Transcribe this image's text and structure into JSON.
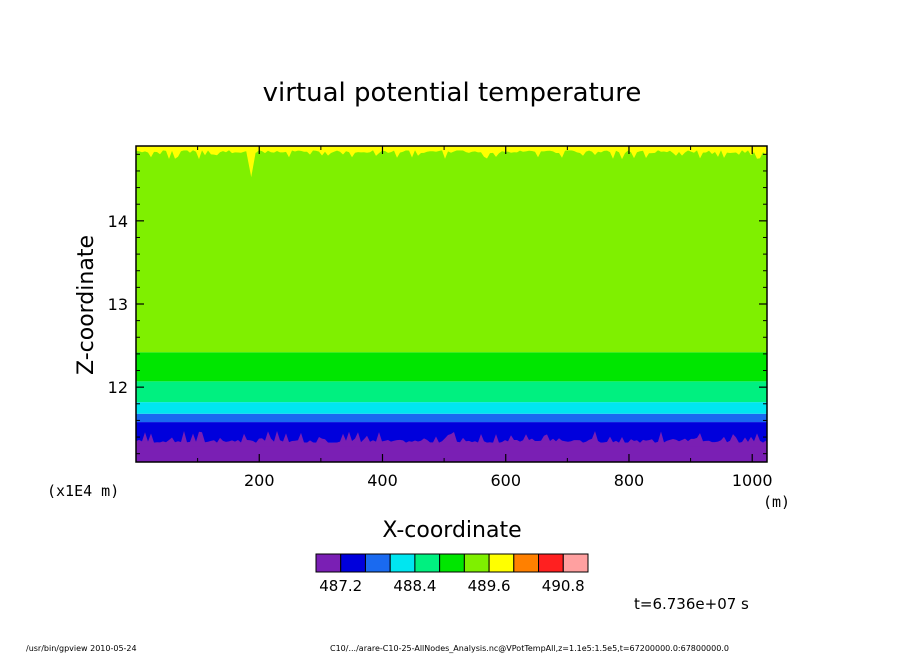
{
  "chart_data": {
    "type": "heatmap",
    "title": "virtual potential temperature",
    "xlabel": "X-coordinate",
    "ylabel": "Z-coordinate",
    "xunit": "(m)",
    "yunit": "(x1E4 m)",
    "xlim": [
      0,
      1024
    ],
    "ylim": [
      11.1,
      14.9
    ],
    "xticks": [
      "200",
      "400",
      "600",
      "800",
      "1000"
    ],
    "xtick_values": [
      200,
      400,
      600,
      800,
      1000
    ],
    "yticks": [
      "12",
      "13",
      "14"
    ],
    "ytick_values": [
      12,
      13,
      14
    ],
    "levels": [
      486.8,
      487.2,
      487.6,
      488.0,
      488.4,
      488.8,
      489.2,
      489.6,
      490.0,
      490.4,
      490.8,
      491.2
    ],
    "level_colors": [
      "#7a1fb4",
      "#0000dc",
      "#1a6af0",
      "#00e6f0",
      "#00f080",
      "#00e600",
      "#7ff000",
      "#ffff00",
      "#ff8000",
      "#ff2020",
      "#ffa0a0"
    ],
    "colorbar_labels": [
      "487.2",
      "488.4",
      "489.6",
      "490.8"
    ],
    "colorbar_label_values": [
      487.2,
      488.4,
      489.6,
      490.8
    ],
    "bands": [
      {
        "z_min": 11.1,
        "z_max": 11.33,
        "value": 487.0
      },
      {
        "z_min": 11.33,
        "z_max": 11.58,
        "value": 487.4
      },
      {
        "z_min": 11.58,
        "z_max": 11.68,
        "value": 487.8
      },
      {
        "z_min": 11.68,
        "z_max": 11.82,
        "value": 488.2
      },
      {
        "z_min": 11.82,
        "z_max": 12.07,
        "value": 488.6
      },
      {
        "z_min": 12.07,
        "z_max": 12.42,
        "value": 489.0
      },
      {
        "z_min": 12.42,
        "z_max": 14.85,
        "value": 489.4
      },
      {
        "z_min": 14.85,
        "z_max": 14.9,
        "value": 489.8
      }
    ]
  },
  "time_label": "t=6.736e+07 s",
  "footer": {
    "left": "/usr/bin/gpview  2010-05-24",
    "right": "C10/.../arare-C10-25-AllNodes_Analysis.nc@VPotTempAll,z=1.1e5:1.5e5,t=67200000.0:67800000.0"
  }
}
